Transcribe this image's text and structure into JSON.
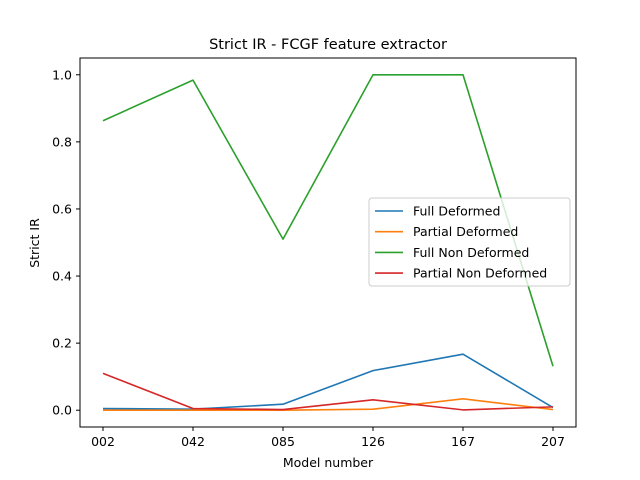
{
  "chart_data": {
    "type": "line",
    "title": "Strict IR - FCGF feature extractor",
    "xlabel": "Model number",
    "ylabel": "Strict IR",
    "categories": [
      "002",
      "042",
      "085",
      "126",
      "167",
      "207"
    ],
    "ylim": [
      -0.05,
      1.05
    ],
    "yticks": [
      "0.0",
      "0.2",
      "0.4",
      "0.6",
      "0.8",
      "1.0"
    ],
    "grid": false,
    "legend_position": "center-right",
    "series": [
      {
        "name": "Full Deformed",
        "color": "#1f77b4",
        "values": [
          0.005,
          0.003,
          0.018,
          0.118,
          0.167,
          0.008
        ]
      },
      {
        "name": "Partial Deformed",
        "color": "#ff7f0e",
        "values": [
          0.0,
          0.0,
          0.0,
          0.003,
          0.034,
          0.002
        ]
      },
      {
        "name": "Full Non Deformed",
        "color": "#2ca02c",
        "values": [
          0.863,
          0.984,
          0.51,
          1.0,
          1.0,
          0.131
        ]
      },
      {
        "name": "Partial Non Deformed",
        "color": "#d62728",
        "values": [
          0.11,
          0.005,
          0.002,
          0.031,
          0.001,
          0.01
        ]
      }
    ]
  }
}
